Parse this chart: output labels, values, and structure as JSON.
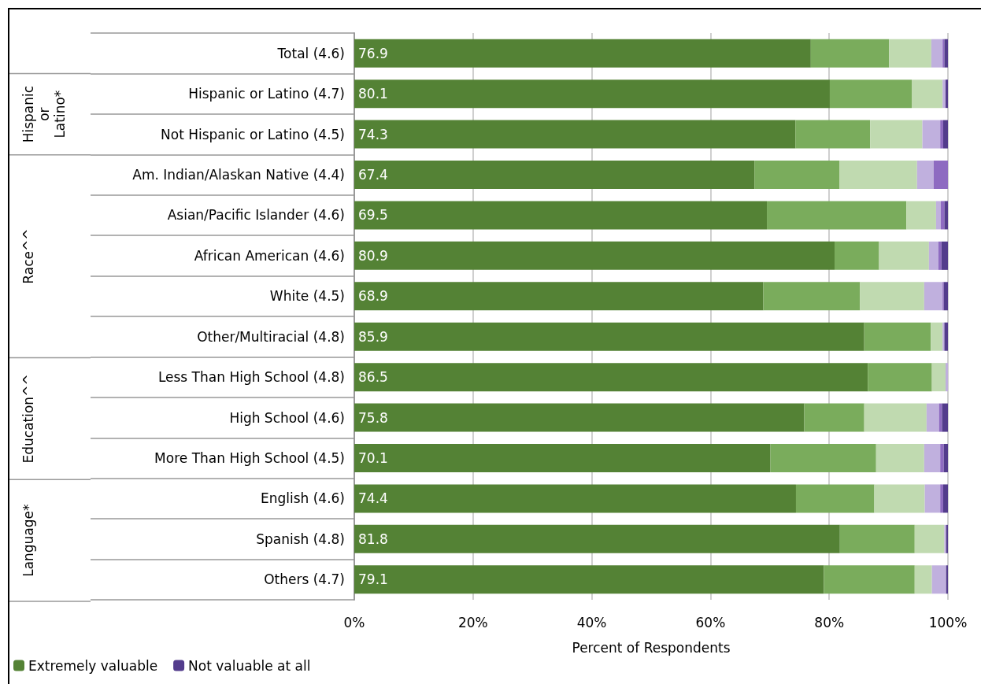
{
  "chart_data": {
    "type": "bar",
    "orientation": "horizontal",
    "stacked": true,
    "categories": [
      "Total (4.6)",
      "Hispanic or Latino (4.7)",
      "Not Hispanic or Latino (4.5)",
      "Am. Indian/Alaskan Native (4.4)",
      "Asian/Pacific Islander (4.6)",
      "African American (4.6)",
      "White (4.5)",
      "Other/Multiracial (4.8)",
      "Less Than High School (4.8)",
      "High School (4.6)",
      "More Than High School (4.5)",
      "English (4.6)",
      "Spanish (4.8)",
      "Others (4.7)"
    ],
    "series": [
      {
        "name": "Extremely valuable",
        "color": "#548235",
        "values": [
          76.9,
          80.1,
          74.3,
          67.4,
          69.5,
          80.9,
          68.9,
          85.9,
          86.5,
          75.8,
          70.1,
          74.4,
          81.8,
          79.1
        ],
        "value_labels": [
          "76.9",
          "80.1",
          "74.3",
          "67.4",
          "69.5",
          "80.9",
          "68.9",
          "85.9",
          "86.5",
          "75.8",
          "70.1",
          "74.4",
          "81.8",
          "79.1"
        ]
      },
      {
        "color": "#7aac5c",
        "values": [
          13.2,
          13.8,
          12.6,
          14.3,
          23.5,
          7.5,
          16.3,
          11.2,
          10.8,
          10.1,
          17.8,
          13.2,
          12.6,
          15.3
        ]
      },
      {
        "color": "#c0dab0",
        "values": [
          7.1,
          5.2,
          8.8,
          13.1,
          5.0,
          8.4,
          10.8,
          2.0,
          2.3,
          10.5,
          8.1,
          8.5,
          5.0,
          2.9
        ]
      },
      {
        "color": "#c0b0de",
        "values": [
          1.9,
          0.5,
          3.0,
          2.8,
          0.8,
          1.6,
          3.1,
          0.3,
          0.4,
          2.1,
          2.7,
          2.6,
          0.3,
          2.4
        ]
      },
      {
        "color": "#8e6bc1",
        "values": [
          0.3,
          0,
          0.5,
          2.4,
          0.6,
          0.5,
          0.2,
          0,
          0,
          0.5,
          0.6,
          0.5,
          0,
          0
        ]
      },
      {
        "name": "Not valuable at all",
        "color": "#533c8c",
        "values": [
          0.6,
          0.4,
          0.8,
          0,
          0.6,
          1.1,
          0.7,
          0.6,
          0,
          1.0,
          0.7,
          0.8,
          0.3,
          0.3
        ]
      }
    ],
    "xlim": [
      0,
      100
    ],
    "xticks": [
      {
        "value": 0,
        "label": "0%"
      },
      {
        "value": 20,
        "label": "20%"
      },
      {
        "value": 40,
        "label": "40%"
      },
      {
        "value": 60,
        "label": "60%"
      },
      {
        "value": 80,
        "label": "80%"
      },
      {
        "value": 100,
        "label": "100%"
      }
    ],
    "xlabel": "Percent of Respondents",
    "annotations": [
      "Hispanic or Latino*",
      "Race^^",
      "Education^^",
      "Language*"
    ],
    "grid": "x",
    "legend": "bottom left"
  }
}
